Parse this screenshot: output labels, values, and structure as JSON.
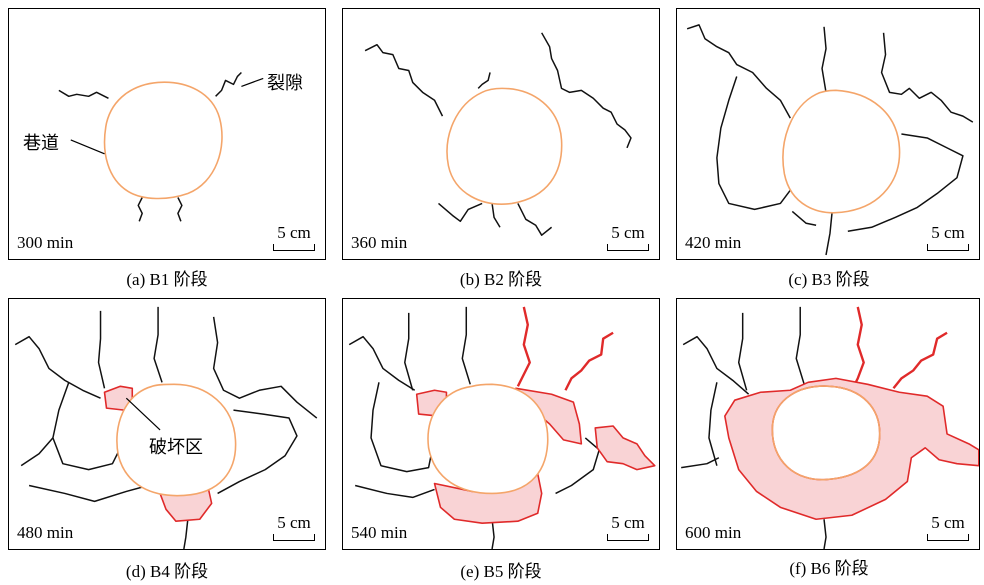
{
  "annotations": {
    "crack_label": "裂隙",
    "tunnel_label": "巷道",
    "damage_label": "破坏区"
  },
  "scale_label": "5 cm",
  "panels": [
    {
      "time": "300 min",
      "caption": "(a) B1 阶段"
    },
    {
      "time": "360 min",
      "caption": "(b) B2 阶段"
    },
    {
      "time": "420 min",
      "caption": "(c)  B3 阶段"
    },
    {
      "time": "480 min",
      "caption": "(d) B4 阶段"
    },
    {
      "time": "540 min",
      "caption": "(e) B5 阶段"
    },
    {
      "time": "600 min",
      "caption": "(f) B6 阶段"
    }
  ],
  "colors": {
    "tunnel": "#f4a56a",
    "damage_fill": "#f9d3d5",
    "damage_stroke": "#e02a2a",
    "crack": "#111111"
  }
}
